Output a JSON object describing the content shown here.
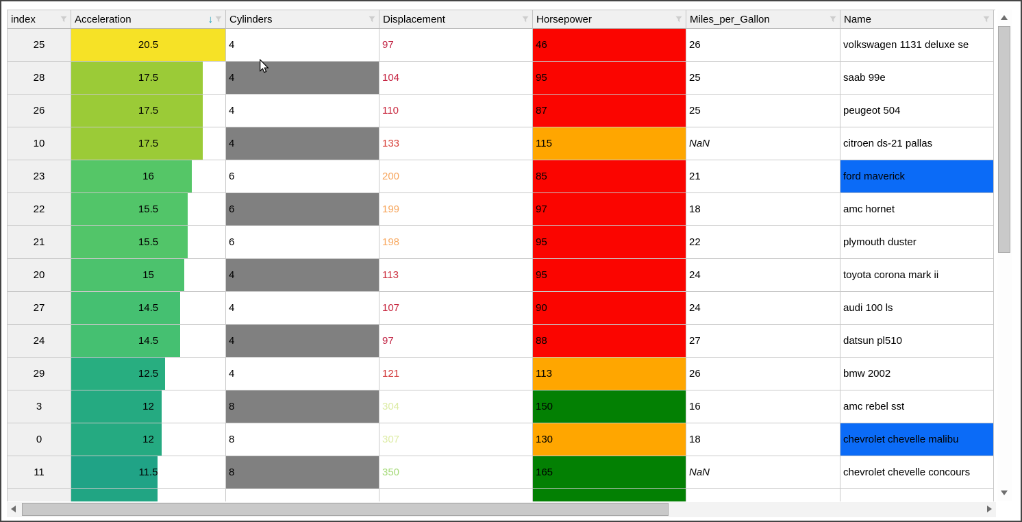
{
  "colors": {
    "header_bg": "#F0F0F0",
    "index_bg": "#F0F0F0",
    "grid_line": "#C8C8C8",
    "gray_cell": "#808080",
    "blue_cell": "#0B6BF7",
    "hp_red": "#FB0500",
    "hp_orange": "#FFA600",
    "hp_green": "#038003",
    "sort_arrow": "#1B9CB5",
    "filter_icon": "#CDCDCD"
  },
  "grid": {
    "columns": [
      {
        "label": "index",
        "sort_icon": ""
      },
      {
        "label": "Acceleration",
        "sort_icon": "↓"
      },
      {
        "label": "Cylinders",
        "sort_icon": ""
      },
      {
        "label": "Displacement",
        "sort_icon": ""
      },
      {
        "label": "Horsepower",
        "sort_icon": ""
      },
      {
        "label": "Miles_per_Gallon",
        "sort_icon": ""
      },
      {
        "label": "Name",
        "sort_icon": ""
      }
    ],
    "rows": [
      {
        "index": "25",
        "accel": "20.5",
        "accel_pct": 100,
        "accel_color": "#F6E226",
        "cyl": "4",
        "cyl_gray": false,
        "disp": "97",
        "disp_color": "#C01E3F",
        "hp": "46",
        "hp_bg": "#FB0500",
        "mpg": "26",
        "mpg_italic": false,
        "name": "volkswagen 1131 deluxe se",
        "name_blue": false
      },
      {
        "index": "28",
        "accel": "17.5",
        "accel_pct": 85.4,
        "accel_color": "#9BCB37",
        "cyl": "4",
        "cyl_gray": true,
        "disp": "104",
        "disp_color": "#C52442",
        "hp": "95",
        "hp_bg": "#FB0500",
        "mpg": "25",
        "mpg_italic": false,
        "name": "saab 99e",
        "name_blue": false
      },
      {
        "index": "26",
        "accel": "17.5",
        "accel_pct": 85.4,
        "accel_color": "#9BCB37",
        "cyl": "4",
        "cyl_gray": false,
        "disp": "110",
        "disp_color": "#C92A40",
        "hp": "87",
        "hp_bg": "#FB0500",
        "mpg": "25",
        "mpg_italic": false,
        "name": "peugeot 504",
        "name_blue": false
      },
      {
        "index": "10",
        "accel": "17.5",
        "accel_pct": 85.4,
        "accel_color": "#9BCB37",
        "cyl": "4",
        "cyl_gray": true,
        "disp": "133",
        "disp_color": "#D8433C",
        "hp": "115",
        "hp_bg": "#FFA600",
        "mpg": "NaN",
        "mpg_italic": true,
        "name": "citroen ds-21 pallas",
        "name_blue": false
      },
      {
        "index": "23",
        "accel": "16",
        "accel_pct": 78.0,
        "accel_color": "#55C667",
        "cyl": "6",
        "cyl_gray": false,
        "disp": "200",
        "disp_color": "#F7A55C",
        "hp": "85",
        "hp_bg": "#FB0500",
        "mpg": "21",
        "mpg_italic": false,
        "name": "ford maverick",
        "name_blue": true
      },
      {
        "index": "22",
        "accel": "15.5",
        "accel_pct": 75.6,
        "accel_color": "#52C569",
        "cyl": "6",
        "cyl_gray": true,
        "disp": "199",
        "disp_color": "#F7A75F",
        "hp": "97",
        "hp_bg": "#FB0500",
        "mpg": "18",
        "mpg_italic": false,
        "name": "amc hornet",
        "name_blue": false
      },
      {
        "index": "21",
        "accel": "15.5",
        "accel_pct": 75.6,
        "accel_color": "#52C569",
        "cyl": "6",
        "cyl_gray": false,
        "disp": "198",
        "disp_color": "#F8A961",
        "hp": "95",
        "hp_bg": "#FB0500",
        "mpg": "22",
        "mpg_italic": false,
        "name": "plymouth duster",
        "name_blue": false
      },
      {
        "index": "20",
        "accel": "15",
        "accel_pct": 73.2,
        "accel_color": "#4CC26D",
        "cyl": "4",
        "cyl_gray": true,
        "disp": "113",
        "disp_color": "#CC2F3E",
        "hp": "95",
        "hp_bg": "#FB0500",
        "mpg": "24",
        "mpg_italic": false,
        "name": "toyota corona mark ii",
        "name_blue": false
      },
      {
        "index": "27",
        "accel": "14.5",
        "accel_pct": 70.7,
        "accel_color": "#45C071",
        "cyl": "4",
        "cyl_gray": false,
        "disp": "107",
        "disp_color": "#C7273F",
        "hp": "90",
        "hp_bg": "#FB0500",
        "mpg": "24",
        "mpg_italic": false,
        "name": "audi 100 ls",
        "name_blue": false
      },
      {
        "index": "24",
        "accel": "14.5",
        "accel_pct": 70.7,
        "accel_color": "#45C071",
        "cyl": "4",
        "cyl_gray": true,
        "disp": "97",
        "disp_color": "#C01E3F",
        "hp": "88",
        "hp_bg": "#FB0500",
        "mpg": "27",
        "mpg_italic": false,
        "name": "datsun pl510",
        "name_blue": false
      },
      {
        "index": "29",
        "accel": "12.5",
        "accel_pct": 61.0,
        "accel_color": "#28AE80",
        "cyl": "4",
        "cyl_gray": false,
        "disp": "121",
        "disp_color": "#D13839",
        "hp": "113",
        "hp_bg": "#FFA600",
        "mpg": "26",
        "mpg_italic": false,
        "name": "bmw 2002",
        "name_blue": false
      },
      {
        "index": "3",
        "accel": "12",
        "accel_pct": 58.5,
        "accel_color": "#25AA81",
        "cyl": "8",
        "cyl_gray": true,
        "disp": "304",
        "disp_color": "#DBEBA2",
        "hp": "150",
        "hp_bg": "#038003",
        "mpg": "16",
        "mpg_italic": false,
        "name": "amc rebel sst",
        "name_blue": false
      },
      {
        "index": "0",
        "accel": "12",
        "accel_pct": 58.5,
        "accel_color": "#25AA81",
        "cyl": "8",
        "cyl_gray": false,
        "disp": "307",
        "disp_color": "#DDECA5",
        "hp": "130",
        "hp_bg": "#FFA600",
        "mpg": "18",
        "mpg_italic": false,
        "name": "chevrolet chevelle malibu",
        "name_blue": true
      },
      {
        "index": "11",
        "accel": "11.5",
        "accel_pct": 56.1,
        "accel_color": "#20A386",
        "cyl": "8",
        "cyl_gray": true,
        "disp": "350",
        "disp_color": "#A5DA78",
        "hp": "165",
        "hp_bg": "#038003",
        "mpg": "NaN",
        "mpg_italic": true,
        "name": "chevrolet chevelle concours",
        "name_blue": false
      }
    ],
    "partial_row": {
      "index": "",
      "accel": "",
      "accel_pct": 56.1,
      "accel_color": "#21A583",
      "cyl": "",
      "cyl_gray": false,
      "disp": "",
      "disp_color": "#000000",
      "hp": "",
      "hp_bg": "#038003",
      "mpg": "",
      "mpg_italic": false,
      "name": "",
      "name_blue": false
    }
  }
}
